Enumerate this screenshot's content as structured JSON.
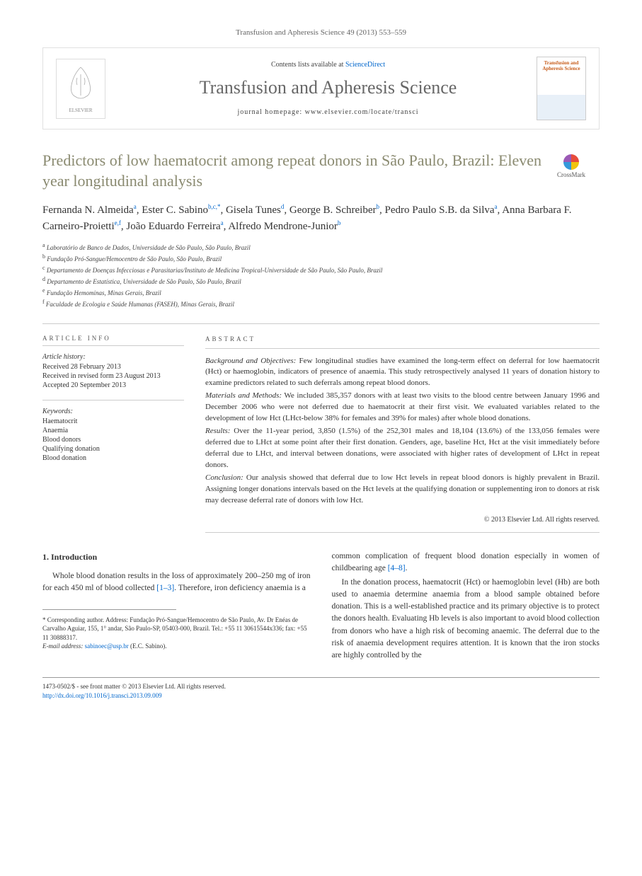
{
  "journal_ref": "Transfusion and Apheresis Science 49 (2013) 553–559",
  "header": {
    "contents_prefix": "Contents lists available at ",
    "contents_link": "ScienceDirect",
    "journal_title": "Transfusion and Apheresis Science",
    "homepage_prefix": "journal homepage: ",
    "homepage_url": "www.elsevier.com/locate/transci",
    "publisher_name": "ELSEVIER",
    "cover_title": "Transfusion and Apheresis Science"
  },
  "crossmark_label": "CrossMark",
  "title": "Predictors of low haematocrit among repeat donors in São Paulo, Brazil: Eleven year longitudinal analysis",
  "authors_html": "Fernanda N. Almeida<sup>a</sup>, Ester C. Sabino<sup>b,c,*</sup>, Gisela Tunes<sup>d</sup>, George B. Schreiber<sup>b</sup>, Pedro Paulo S.B. da Silva<sup>a</sup>, Anna Barbara F. Carneiro-Proietti<sup>e,f</sup>, João Eduardo Ferreira<sup>a</sup>, Alfredo Mendrone-Junior<sup>b</sup>",
  "affiliations": [
    {
      "sup": "a",
      "text": "Laboratório de Banco de Dados, Universidade de São Paulo, São Paulo, Brazil"
    },
    {
      "sup": "b",
      "text": "Fundação Pró-Sangue/Hemocentro de São Paulo, São Paulo, Brazil"
    },
    {
      "sup": "c",
      "text": "Departamento de Doenças Infecciosas e Parasitarias/Instituto de Medicina Tropical-Universidade de São Paulo, São Paulo, Brazil"
    },
    {
      "sup": "d",
      "text": "Departamento de Estatística, Universidade de São Paulo, São Paulo, Brazil"
    },
    {
      "sup": "e",
      "text": "Fundação Hemominas, Minas Gerais, Brazil"
    },
    {
      "sup": "f",
      "text": "Faculdade de Ecologia e Saúde Humanas (FASEH), Minas Gerais, Brazil"
    }
  ],
  "info": {
    "header": "ARTICLE INFO",
    "history_label": "Article history:",
    "history": [
      "Received 28 February 2013",
      "Received in revised form 23 August 2013",
      "Accepted 20 September 2013"
    ],
    "keywords_label": "Keywords:",
    "keywords": [
      "Haematocrit",
      "Anaemia",
      "Blood donors",
      "Qualifying donation",
      "Blood donation"
    ]
  },
  "abstract": {
    "header": "ABSTRACT",
    "paragraphs": [
      {
        "label": "Background and Objectives:",
        "text": " Few longitudinal studies have examined the long-term effect on deferral for low haematocrit (Hct) or haemoglobin, indicators of presence of anaemia. This study retrospectively analysed 11 years of donation history to examine predictors related to such deferrals among repeat blood donors."
      },
      {
        "label": "Materials and Methods:",
        "text": " We included 385,357 donors with at least two visits to the blood centre between January 1996 and December 2006 who were not deferred due to haematocrit at their first visit. We evaluated variables related to the development of low Hct (LHct-below 38% for females and 39% for males) after whole blood donations."
      },
      {
        "label": "Results:",
        "text": " Over the 11-year period, 3,850 (1.5%) of the 252,301 males and 18,104 (13.6%) of the 133,056 females were deferred due to LHct at some point after their first donation. Genders, age, baseline Hct, Hct at the visit immediately before deferral due to LHct, and interval between donations, were associated with higher rates of development of LHct in repeat donors."
      },
      {
        "label": "Conclusion:",
        "text": " Our analysis showed that deferral due to low Hct levels in repeat blood donors is highly prevalent in Brazil. Assigning longer donations intervals based on the Hct levels at the qualifying donation or supplementing iron to donors at risk may decrease deferral rate of donors with low Hct."
      }
    ],
    "copyright": "© 2013 Elsevier Ltd. All rights reserved."
  },
  "body": {
    "intro_heading": "1. Introduction",
    "col1_para1_a": "Whole blood donation results in the loss of approximately 200–250 mg of iron for each 450 ml of blood collected ",
    "col1_para1_ref": "[1–3]",
    "col1_para1_b": ". Therefore, iron deficiency anaemia is a",
    "col2_para1_a": "common complication of frequent blood donation especially in women of childbearing age ",
    "col2_para1_ref": "[4–8]",
    "col2_para1_b": ".",
    "col2_para2": "In the donation process, haematocrit (Hct) or haemoglobin level (Hb) are both used to anaemia determine anaemia from a blood sample obtained before donation. This is a well-established practice and its primary objective is to protect the donors health. Evaluating Hb levels is also important to avoid blood collection from donors who have a high risk of becoming anaemic. The deferral due to the risk of anaemia development requires attention. It is known that the iron stocks are highly controlled by the"
  },
  "corresponding": {
    "label": "* Corresponding author.",
    "address": " Address: Fundação Pró-Sangue/Hemocentro de São Paulo, Av. Dr Enéas de Carvalho Aguiar, 155, 1° andar, São Paulo-SP, 05403-000, Brazil. Tel.: +55 11 30615544x336; fax: +55 11 30888317.",
    "email_label": "E-mail address: ",
    "email": "sabinoec@usp.br",
    "email_person": " (E.C. Sabino)."
  },
  "footer": {
    "issn_line": "1473-0502/$ - see front matter © 2013 Elsevier Ltd. All rights reserved.",
    "doi": "http://dx.doi.org/10.1016/j.transci.2013.09.009"
  },
  "colors": {
    "title_color": "#8a8a70",
    "link_color": "#0066cc",
    "journal_title_color": "#676767",
    "border_color": "#cccccc"
  }
}
